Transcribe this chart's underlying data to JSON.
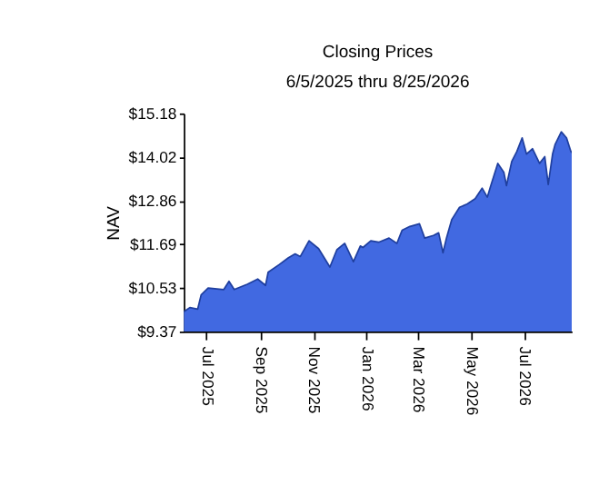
{
  "chart_data": {
    "type": "area",
    "title": "Closing Prices",
    "subtitle": "6/5/2025 thru 8/25/2026",
    "ylabel": "NAV",
    "x": [
      "2025-06-05",
      "2025-06-12",
      "2025-06-21",
      "2025-06-25",
      "2025-07-03",
      "2025-07-21",
      "2025-07-27",
      "2025-08-02",
      "2025-08-17",
      "2025-08-29",
      "2025-09-07",
      "2025-09-10",
      "2025-09-23",
      "2025-10-03",
      "2025-10-11",
      "2025-10-17",
      "2025-10-27",
      "2025-11-07",
      "2025-11-20",
      "2025-11-28",
      "2025-12-07",
      "2025-12-17",
      "2025-12-25",
      "2025-12-28",
      "2026-01-06",
      "2026-01-15",
      "2026-01-27",
      "2026-02-05",
      "2026-02-11",
      "2026-02-20",
      "2026-03-03",
      "2026-03-09",
      "2026-03-19",
      "2026-03-25",
      "2026-03-30",
      "2026-04-03",
      "2026-04-09",
      "2026-04-18",
      "2026-04-27",
      "2026-05-06",
      "2026-05-14",
      "2026-05-20",
      "2026-05-24",
      "2026-06-01",
      "2026-06-08",
      "2026-06-11",
      "2026-06-17",
      "2026-06-23",
      "2026-06-29",
      "2026-07-04",
      "2026-07-11",
      "2026-07-19",
      "2026-07-25",
      "2026-07-29",
      "2026-08-03",
      "2026-08-06",
      "2026-08-13",
      "2026-08-19",
      "2026-08-24",
      "2026-08-25"
    ],
    "series": [
      {
        "color": "#4169e1",
        "values": [
          9.9,
          10.01,
          9.97,
          10.35,
          10.53,
          10.49,
          10.71,
          10.49,
          10.63,
          10.77,
          10.6,
          10.95,
          11.16,
          11.33,
          11.44,
          11.37,
          11.79,
          11.58,
          11.09,
          11.55,
          11.72,
          11.23,
          11.65,
          11.61,
          11.79,
          11.75,
          11.86,
          11.72,
          12.07,
          12.17,
          12.24,
          11.86,
          11.93,
          12.0,
          11.47,
          11.86,
          12.35,
          12.68,
          12.77,
          12.91,
          13.19,
          12.95,
          13.26,
          13.85,
          13.61,
          13.26,
          13.9,
          14.17,
          14.53,
          14.1,
          14.24,
          13.85,
          14.03,
          13.29,
          14.1,
          14.36,
          14.69,
          14.53,
          14.17,
          14.13
        ]
      }
    ],
    "xlim": [
      "2025-06-05",
      "2026-08-25"
    ],
    "xticks": [
      {
        "value": "2025-07-01",
        "label": "Jul 2025"
      },
      {
        "value": "2025-09-01",
        "label": "Sep 2025"
      },
      {
        "value": "2025-11-01",
        "label": "Nov 2025"
      },
      {
        "value": "2026-01-01",
        "label": "Jan 2026"
      },
      {
        "value": "2026-03-01",
        "label": "Mar 2026"
      },
      {
        "value": "2026-05-01",
        "label": "May 2026"
      },
      {
        "value": "2026-07-01",
        "label": "Jul 2026"
      }
    ],
    "ylim": [
      9.37,
      15.18
    ],
    "yticks": [
      {
        "value": 9.37,
        "label": "$9.37"
      },
      {
        "value": 10.53,
        "label": "$10.53"
      },
      {
        "value": 11.69,
        "label": "$11.69"
      },
      {
        "value": 12.86,
        "label": "$12.86"
      },
      {
        "value": 14.02,
        "label": "$14.02"
      },
      {
        "value": 15.18,
        "label": "$15.18"
      }
    ],
    "grid": false
  }
}
